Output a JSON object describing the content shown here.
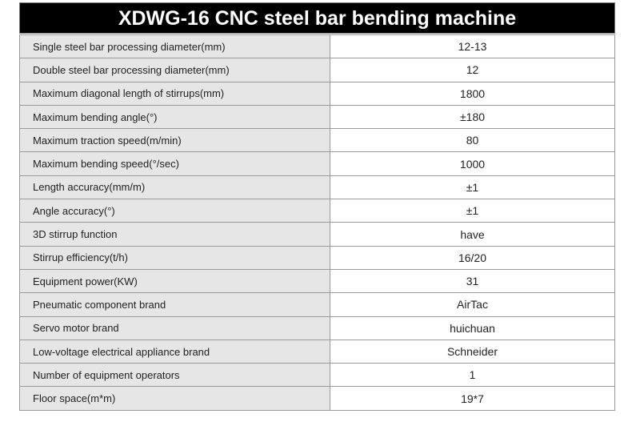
{
  "header": {
    "title": "XDWG-16 CNC steel bar bending machine"
  },
  "table": {
    "rows": [
      [
        "Single steel bar processing diameter(mm)",
        "12-13"
      ],
      [
        "Double steel bar processing diameter(mm)",
        "12"
      ],
      [
        "Maximum diagonal length of stirrups(mm)",
        "1800"
      ],
      [
        "Maximum bending angle(°)",
        "±180"
      ],
      [
        "Maximum traction speed(m/min)",
        "80"
      ],
      [
        "Maximum bending speed(°/sec)",
        "1000"
      ],
      [
        "Length accuracy(mm/m)",
        "±1"
      ],
      [
        "Angle accuracy(°)",
        "±1"
      ],
      [
        "3D stirrup function",
        "have"
      ],
      [
        "Stirrup efficiency(t/h)",
        "16/20"
      ],
      [
        "Equipment power(KW)",
        "31"
      ],
      [
        "Pneumatic component brand",
        "AirTac"
      ],
      [
        "Servo motor brand",
        "huichuan"
      ],
      [
        "Low-voltage electrical appliance brand",
        "Schneider"
      ],
      [
        "Number of equipment operators",
        "1"
      ],
      [
        "Floor space(m*m)",
        "19*7"
      ]
    ]
  }
}
